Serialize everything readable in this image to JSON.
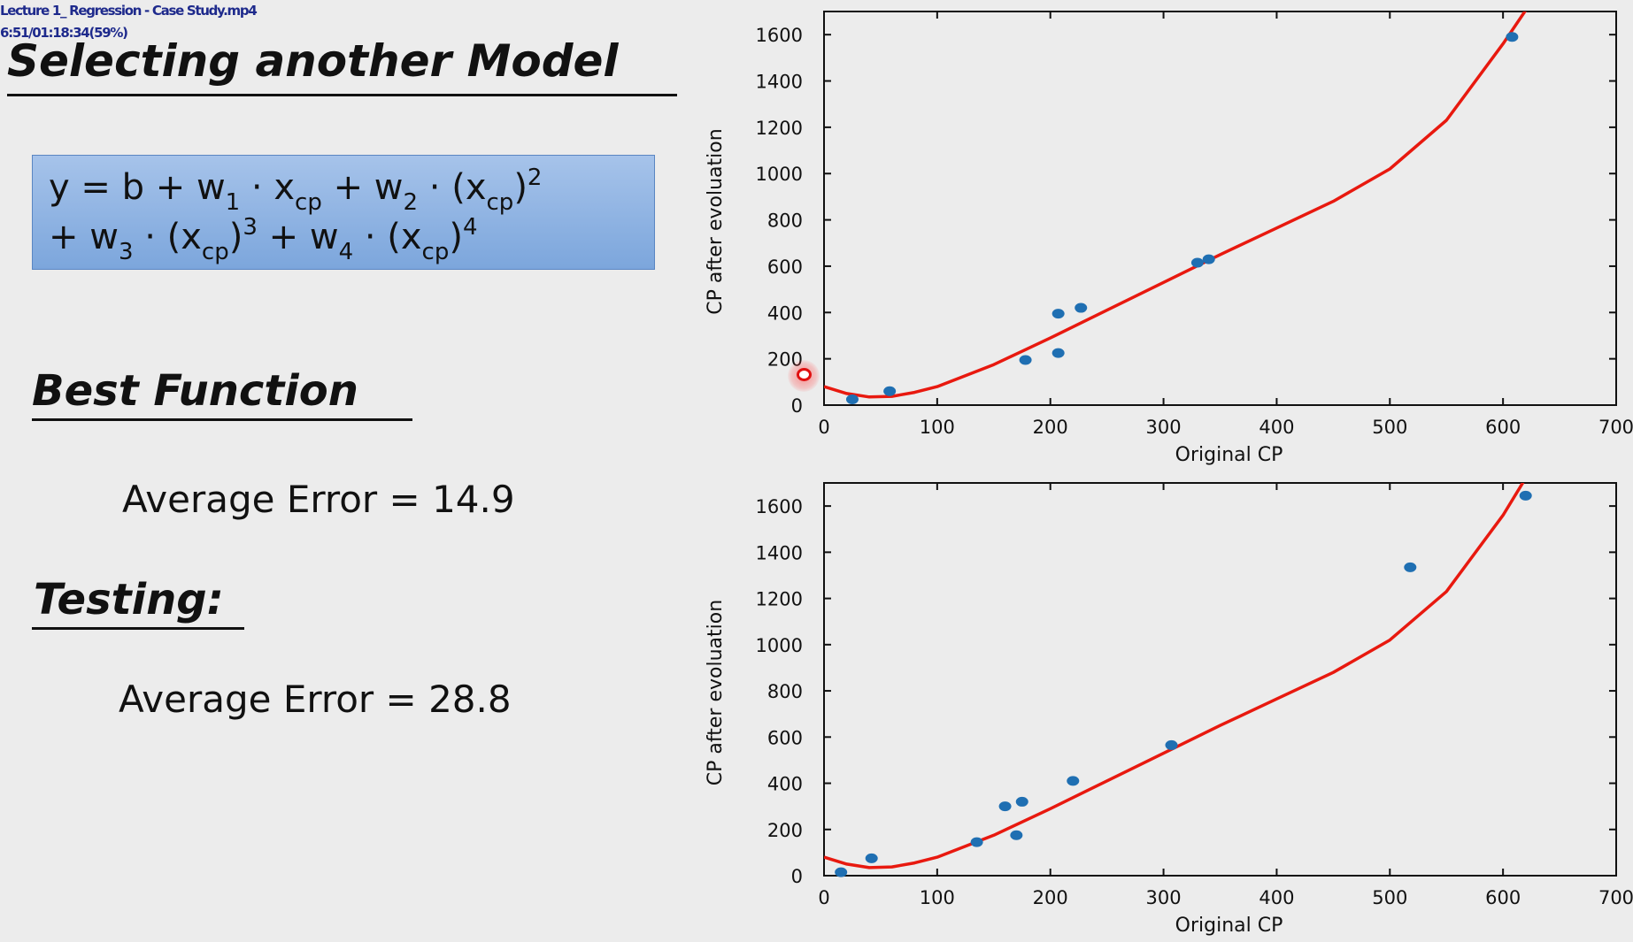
{
  "overlay": {
    "filename": "Lecture 1_ Regression - Case Study.mp4",
    "timestamp": "6:51/01:18:34(59%)"
  },
  "slide": {
    "title": "Selecting another Model",
    "formula": {
      "line1": {
        "y": "y = b + w",
        "w1_sub": "1",
        "dot1": " · x",
        "xcp_sub_1": "cp",
        "plus_w2": " + w",
        "w2_sub": "2",
        "dot2": " · (x",
        "xcp_sub_2": "cp",
        "close2": ")",
        "pow2": "2"
      },
      "line2": {
        "plus_w3": "+ w",
        "w3_sub": "3",
        "dot3": " · (x",
        "xcp_sub_3": "cp",
        "close3": ")",
        "pow3": "3",
        "plus_w4": " + w",
        "w4_sub": "4",
        "dot4": " · (x",
        "xcp_sub_4": "cp",
        "close4": ")",
        "pow4": "4"
      }
    },
    "best_function_heading": "Best Function",
    "training_error": "Average Error = 14.9",
    "testing_heading": "Testing:",
    "testing_error": "Average Error = 28.8"
  },
  "colors": {
    "point": "#1f6fb2",
    "curve": "#e8190f",
    "formula_box": "#8db3e2"
  },
  "chart_data": [
    {
      "type": "scatter",
      "xlabel": "Original CP",
      "ylabel": "CP after evoluation",
      "xlim": [
        0,
        700
      ],
      "ylim": [
        0,
        1700
      ],
      "x_ticks": [
        0,
        100,
        200,
        300,
        400,
        500,
        600,
        700
      ],
      "y_ticks": [
        0,
        200,
        400,
        600,
        800,
        1000,
        1200,
        1400,
        1600
      ],
      "grid": false,
      "points": [
        {
          "x": 25,
          "y": 25
        },
        {
          "x": 58,
          "y": 60
        },
        {
          "x": 178,
          "y": 195
        },
        {
          "x": 207,
          "y": 395
        },
        {
          "x": 207,
          "y": 225
        },
        {
          "x": 227,
          "y": 420
        },
        {
          "x": 330,
          "y": 615
        },
        {
          "x": 340,
          "y": 630
        },
        {
          "x": 608,
          "y": 1590
        }
      ],
      "curve": {
        "x": [
          0,
          20,
          40,
          60,
          80,
          100,
          150,
          200,
          250,
          300,
          350,
          400,
          450,
          500,
          550,
          600,
          620
        ],
        "y": [
          80,
          50,
          35,
          38,
          55,
          80,
          175,
          290,
          410,
          530,
          650,
          765,
          880,
          1020,
          1230,
          1560,
          1705
        ]
      }
    },
    {
      "type": "scatter",
      "xlabel": "Original CP",
      "ylabel": "CP after evoluation",
      "xlim": [
        0,
        700
      ],
      "ylim": [
        0,
        1700
      ],
      "x_ticks": [
        0,
        100,
        200,
        300,
        400,
        500,
        600,
        700
      ],
      "y_ticks": [
        0,
        200,
        400,
        600,
        800,
        1000,
        1200,
        1400,
        1600
      ],
      "grid": false,
      "points": [
        {
          "x": 15,
          "y": 15
        },
        {
          "x": 42,
          "y": 75
        },
        {
          "x": 135,
          "y": 145
        },
        {
          "x": 160,
          "y": 300
        },
        {
          "x": 170,
          "y": 175
        },
        {
          "x": 175,
          "y": 320
        },
        {
          "x": 220,
          "y": 410
        },
        {
          "x": 307,
          "y": 565
        },
        {
          "x": 518,
          "y": 1335
        },
        {
          "x": 620,
          "y": 1645
        }
      ],
      "curve": {
        "x": [
          0,
          20,
          40,
          60,
          80,
          100,
          150,
          200,
          250,
          300,
          350,
          400,
          450,
          500,
          550,
          600,
          618
        ],
        "y": [
          80,
          50,
          35,
          38,
          55,
          80,
          175,
          290,
          410,
          530,
          650,
          765,
          880,
          1020,
          1230,
          1560,
          1705
        ]
      }
    }
  ]
}
